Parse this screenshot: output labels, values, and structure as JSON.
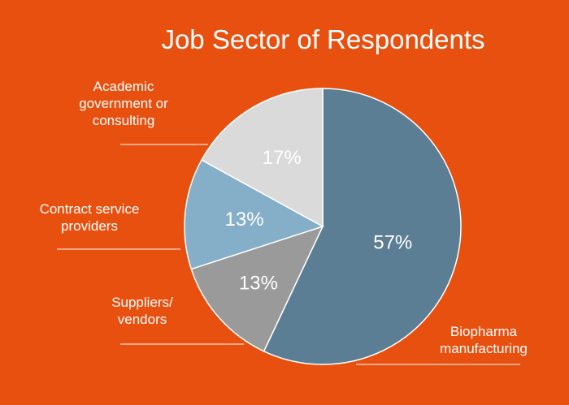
{
  "chart_data": {
    "type": "pie",
    "title": "Job Sector of Respondents",
    "slices": [
      {
        "label": "Biopharma manufacturing",
        "value": 57,
        "display": "57%",
        "color": "#5C7E94",
        "text_color": "#FFFFFF"
      },
      {
        "label": "Suppliers/ vendors",
        "value": 13,
        "display": "13%",
        "color": "#9A9A9A",
        "text_color": "#FFFFFF"
      },
      {
        "label": "Contract service providers",
        "value": 13,
        "display": "13%",
        "color": "#85AFC8",
        "text_color": "#FFFFFF"
      },
      {
        "label": "Academic government or consulting",
        "value": 17,
        "display": "17%",
        "color": "#DADADA",
        "text_color": "#FFFFFF"
      }
    ],
    "label_lines": {
      "0": [
        "Biopharma",
        "manufacturing"
      ],
      "1": [
        "Suppliers/",
        "vendors"
      ],
      "2": [
        "Contract service",
        "providers"
      ],
      "3": [
        "Academic",
        "government or",
        "consulting"
      ]
    },
    "start_angle_deg": 0,
    "direction": "clockwise",
    "background": "#E8500F",
    "legend": "none"
  }
}
